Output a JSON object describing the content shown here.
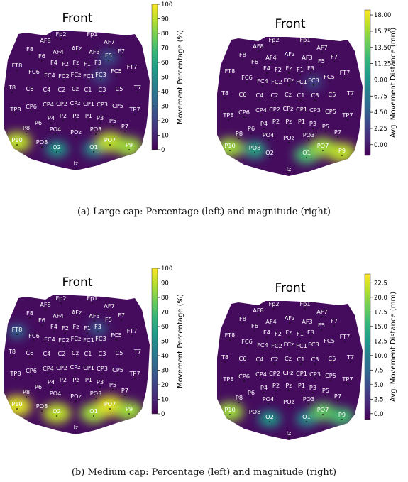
{
  "figure": {
    "captions": [
      "(a) Large cap: Percentage (left) and magnitude (right)",
      "(b) Medium cap: Percentage (left) and magnitude (right)"
    ]
  },
  "chart_data": [
    {
      "type": "heatmap",
      "title": "Front",
      "colorbar_label": "Movement Percentage (%)",
      "colorbar_ticks": [
        "0",
        "10",
        "20",
        "30",
        "40",
        "50",
        "60",
        "70",
        "80",
        "90",
        "100"
      ],
      "range": [
        0,
        100
      ],
      "colormap": "viridis",
      "hotspots": [
        {
          "near": "P10",
          "level": 0.9
        },
        {
          "near": "O2",
          "level": 0.55
        },
        {
          "near": "O1",
          "level": 0.5
        },
        {
          "near": "PO7",
          "level": 0.9
        },
        {
          "near": "P9",
          "level": 0.85
        },
        {
          "near": "FC3",
          "level": 0.25
        },
        {
          "near": "F5",
          "level": 0.3
        }
      ]
    },
    {
      "type": "heatmap",
      "title": "Front",
      "colorbar_label": "Avg. Movement Distance (mm)",
      "colorbar_ticks": [
        "0.00",
        "2.25",
        "4.50",
        "6.75",
        "9.00",
        "11.25",
        "13.50",
        "15.75",
        "18.00"
      ],
      "range": [
        -1.5,
        18.7
      ],
      "colormap": "viridis",
      "hotspots": [
        {
          "near": "P10",
          "level": 0.85
        },
        {
          "near": "PO8",
          "level": 0.6
        },
        {
          "near": "O1",
          "level": 0.7
        },
        {
          "near": "PO7",
          "level": 0.85
        },
        {
          "near": "P9",
          "level": 0.9
        },
        {
          "near": "FC3",
          "level": 0.25
        }
      ]
    },
    {
      "type": "heatmap",
      "title": "Front",
      "colorbar_label": "Movement Percentage (%)",
      "colorbar_ticks": [
        "0",
        "10",
        "20",
        "30",
        "40",
        "50",
        "60",
        "70",
        "80",
        "90",
        "100"
      ],
      "range": [
        0,
        100
      ],
      "colormap": "viridis",
      "hotspots": [
        {
          "near": "P10",
          "level": 0.95
        },
        {
          "near": "O2",
          "level": 0.9
        },
        {
          "near": "O1",
          "level": 0.85
        },
        {
          "near": "PO7",
          "level": 0.95
        },
        {
          "near": "P9",
          "level": 0.85
        },
        {
          "near": "FT8",
          "level": 0.35
        },
        {
          "near": "F3",
          "level": 0.3
        }
      ]
    },
    {
      "type": "heatmap",
      "title": "Front",
      "colorbar_label": "Avg. Movement Distance (mm)",
      "colorbar_ticks": [
        "0.0",
        "2.5",
        "5.0",
        "7.5",
        "10.0",
        "12.5",
        "15.0",
        "17.5",
        "20.0",
        "22.5"
      ],
      "range": [
        -1.0,
        24.0
      ],
      "colormap": "viridis",
      "hotspots": [
        {
          "near": "P10",
          "level": 0.85
        },
        {
          "near": "O2",
          "level": 0.55
        },
        {
          "near": "O1",
          "level": 0.5
        },
        {
          "near": "PO7",
          "level": 0.75
        },
        {
          "near": "P9",
          "level": 0.7
        }
      ]
    }
  ],
  "electrodes": [
    "Fp2",
    "Fp1",
    "AF8",
    "AF4",
    "AFz",
    "AF3",
    "AF7",
    "F8",
    "F6",
    "F4",
    "F2",
    "Fz",
    "F1",
    "F3",
    "F5",
    "F7",
    "FT8",
    "FC6",
    "FC4",
    "FC2",
    "FCz",
    "FC1",
    "FC3",
    "FC5",
    "FT7",
    "T8",
    "C6",
    "C4",
    "C2",
    "Cz",
    "C1",
    "C3",
    "C5",
    "T7",
    "TP8",
    "CP6",
    "CP4",
    "CP2",
    "CPz",
    "CP1",
    "CP3",
    "CP5",
    "TP7",
    "P8",
    "P6",
    "P4",
    "P2",
    "Pz",
    "P1",
    "P3",
    "P5",
    "P7",
    "P10",
    "PO8",
    "PO4",
    "POz",
    "PO3",
    "PO7",
    "P9",
    "O2",
    "O1",
    "Iz"
  ]
}
